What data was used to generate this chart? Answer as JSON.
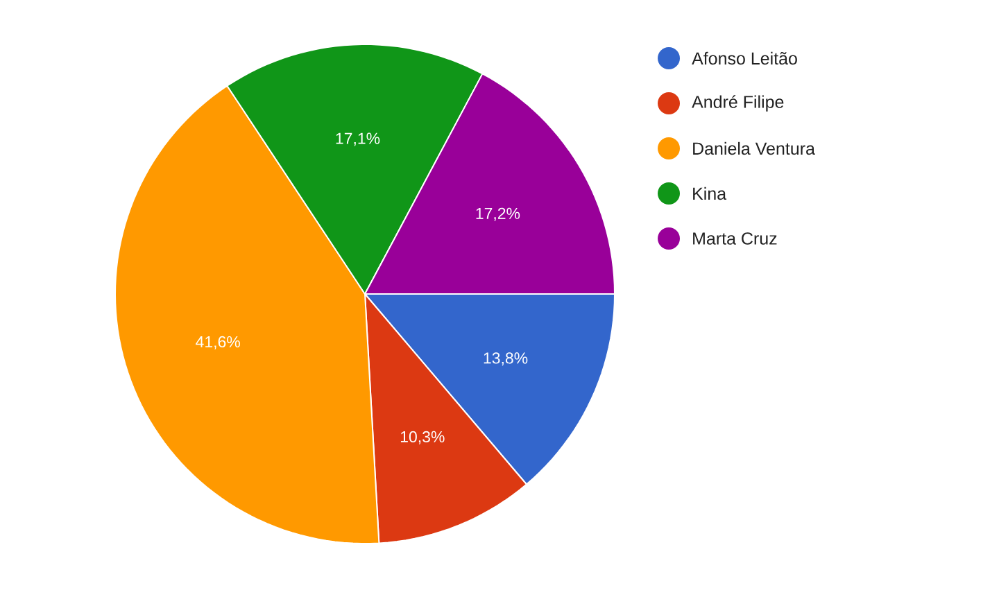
{
  "chart_data": {
    "type": "pie",
    "categories": [
      "Afonso Leitão",
      "André Filipe",
      "Daniela Ventura",
      "Kina",
      "Marta Cruz"
    ],
    "values": [
      13.8,
      10.3,
      41.6,
      17.1,
      17.2
    ],
    "colors": [
      "#3366cc",
      "#dc3912",
      "#ff9900",
      "#109618",
      "#990099"
    ],
    "value_labels": [
      "13,8%",
      "10,3%",
      "41,6%",
      "17,1%",
      "17,2%"
    ],
    "legend": "top right"
  }
}
